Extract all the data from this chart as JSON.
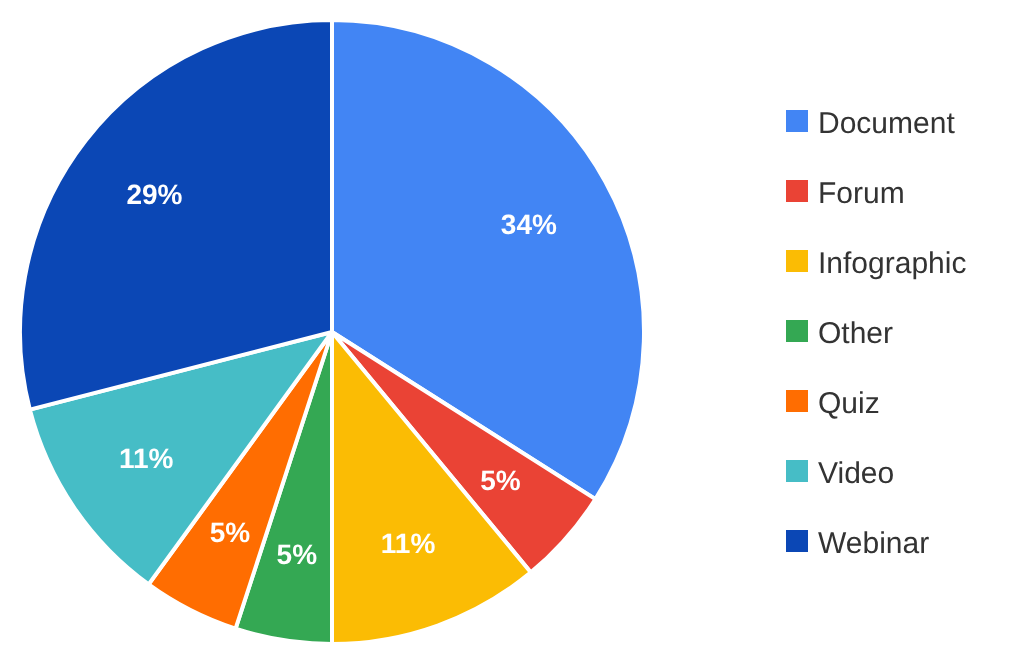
{
  "chart_data": {
    "type": "pie",
    "categories": [
      "Document",
      "Forum",
      "Infographic",
      "Other",
      "Quiz",
      "Video",
      "Webinar"
    ],
    "values": [
      34,
      5,
      11,
      5,
      5,
      11,
      29
    ],
    "colors": [
      "#4285f4",
      "#ea4335",
      "#fbbc04",
      "#34a853",
      "#ff6d01",
      "#46bdc6",
      "#0b47b5"
    ],
    "value_labels": [
      "34%",
      "5%",
      "11%",
      "5%",
      "5%",
      "11%",
      "29%"
    ],
    "legend": "right"
  }
}
